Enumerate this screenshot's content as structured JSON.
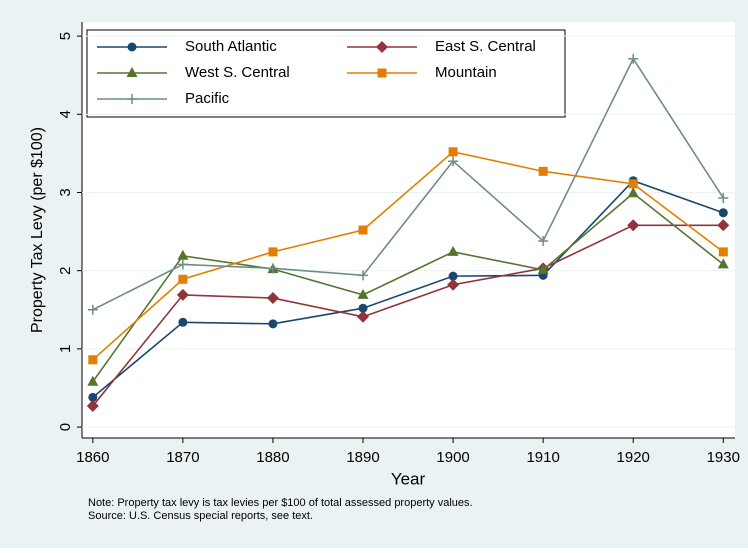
{
  "chart_data": {
    "type": "line",
    "x_label": "Year",
    "y_label": "Property Tax Levy (per $100)",
    "notes": [
      "Note: Property tax levy is tax levies per $100 of total assessed property values.",
      "Source:  U.S. Census special reports, see text."
    ],
    "x": [
      1860,
      1870,
      1880,
      1890,
      1900,
      1910,
      1920,
      1930
    ],
    "series": [
      {
        "name": "South Atlantic",
        "color": "#1a476f",
        "marker": "circle",
        "values": [
          0.38,
          1.34,
          1.32,
          1.52,
          1.93,
          1.94,
          3.15,
          2.74
        ]
      },
      {
        "name": "East S. Central",
        "color": "#90353b",
        "marker": "diamond",
        "values": [
          0.27,
          1.69,
          1.65,
          1.41,
          1.82,
          2.03,
          2.58,
          2.58
        ]
      },
      {
        "name": "West S. Central",
        "color": "#55752f",
        "marker": "triangle",
        "values": [
          0.58,
          2.19,
          2.02,
          1.69,
          2.24,
          2.01,
          2.99,
          2.08
        ]
      },
      {
        "name": "Mountain",
        "color": "#e37e00",
        "marker": "square",
        "values": [
          0.86,
          1.89,
          2.24,
          2.52,
          3.52,
          3.27,
          3.11,
          2.24
        ]
      },
      {
        "name": "Pacific",
        "color": "#6e8e84",
        "marker": "plus",
        "values": [
          1.5,
          2.08,
          2.03,
          1.94,
          3.4,
          2.38,
          4.71,
          2.93
        ]
      }
    ],
    "xlim": [
      1858.8,
      1931.3
    ],
    "xticks": [
      1860,
      1870,
      1880,
      1890,
      1900,
      1910,
      1920,
      1930
    ],
    "ylim": [
      -0.14,
      5.18
    ],
    "yticks": [
      0,
      1,
      2,
      3,
      4,
      5
    ],
    "grid": true
  }
}
